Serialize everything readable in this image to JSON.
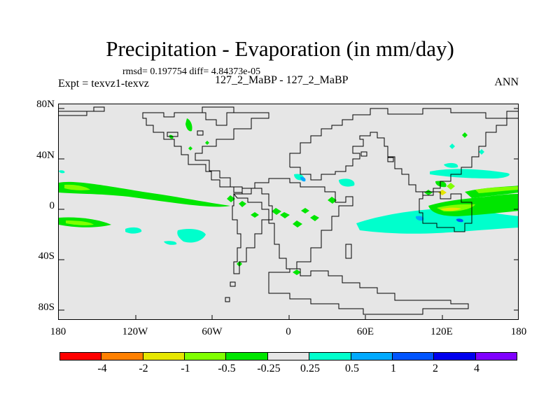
{
  "title": "Precipitation - Evaporation (in mm/day)",
  "stats": "rmsd= 0.197754 diff= 4.84373e-05",
  "expt": "Expt = texvz1-texvz",
  "case": "127_2_MaBP - 127_2_MaBP",
  "season": "ANN",
  "y_ticks": [
    "80N",
    "40N",
    "0",
    "40S",
    "80S"
  ],
  "x_ticks": [
    "180",
    "120W",
    "60W",
    "0",
    "60E",
    "120E",
    "180"
  ],
  "colorbar": {
    "labels": [
      "-4",
      "-2",
      "-1",
      "-0.5",
      "-0.25",
      "0.25",
      "0.5",
      "1",
      "2",
      "4"
    ],
    "colors": [
      "#ff0000",
      "#ff8000",
      "#e6e600",
      "#80ff00",
      "#00e600",
      "#e6e6e6",
      "#00ffcc",
      "#00aaff",
      "#0055ff",
      "#0000ee",
      "#8000ff"
    ]
  },
  "map": {
    "lon_range": [
      -180,
      180
    ],
    "lat_range": [
      -90,
      90
    ],
    "background_color": "#e6e6e6",
    "coastline_color": "#000000"
  }
}
